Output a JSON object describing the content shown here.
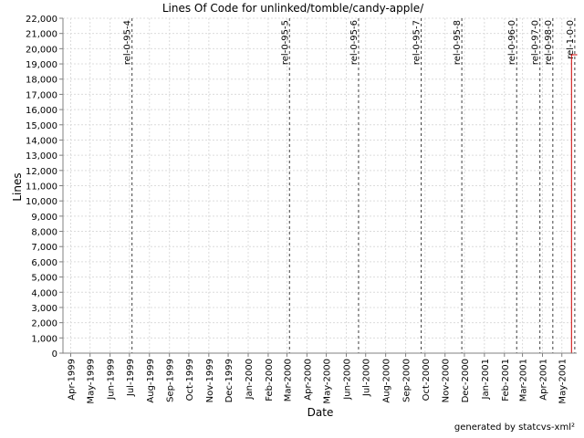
{
  "chart_data": {
    "type": "line",
    "title": "Lines Of Code for unlinked/tomble/candy-apple/",
    "xlabel": "Date",
    "ylabel": "Lines",
    "ylim": [
      0,
      22000
    ],
    "ytick_step": 1000,
    "x_range": [
      "1999-03-20",
      "2001-05-24"
    ],
    "grid": true,
    "x_ticks": [
      {
        "date": "1999-04-01",
        "label": "Apr-1999"
      },
      {
        "date": "1999-05-01",
        "label": "May-1999"
      },
      {
        "date": "1999-06-01",
        "label": "Jun-1999"
      },
      {
        "date": "1999-07-01",
        "label": "Jul-1999"
      },
      {
        "date": "1999-08-01",
        "label": "Aug-1999"
      },
      {
        "date": "1999-09-01",
        "label": "Sep-1999"
      },
      {
        "date": "1999-10-01",
        "label": "Oct-1999"
      },
      {
        "date": "1999-11-01",
        "label": "Nov-1999"
      },
      {
        "date": "1999-12-01",
        "label": "Dec-1999"
      },
      {
        "date": "2000-01-01",
        "label": "Jan-2000"
      },
      {
        "date": "2000-02-01",
        "label": "Feb-2000"
      },
      {
        "date": "2000-03-01",
        "label": "Mar-2000"
      },
      {
        "date": "2000-04-01",
        "label": "Apr-2000"
      },
      {
        "date": "2000-05-01",
        "label": "May-2000"
      },
      {
        "date": "2000-06-01",
        "label": "Jun-2000"
      },
      {
        "date": "2000-07-01",
        "label": "Jul-2000"
      },
      {
        "date": "2000-08-01",
        "label": "Aug-2000"
      },
      {
        "date": "2000-09-01",
        "label": "Sep-2000"
      },
      {
        "date": "2000-10-01",
        "label": "Oct-2000"
      },
      {
        "date": "2000-11-01",
        "label": "Nov-2000"
      },
      {
        "date": "2000-12-01",
        "label": "Dec-2000"
      },
      {
        "date": "2001-01-01",
        "label": "Jan-2001"
      },
      {
        "date": "2001-02-01",
        "label": "Feb-2001"
      },
      {
        "date": "2001-03-01",
        "label": "Mar-2001"
      },
      {
        "date": "2001-04-01",
        "label": "Apr-2001"
      },
      {
        "date": "2001-05-01",
        "label": "May-2001"
      }
    ],
    "markers": [
      {
        "date": "1999-07-05",
        "label": "rel-0-95-4"
      },
      {
        "date": "2000-03-05",
        "label": "rel-0-95-5"
      },
      {
        "date": "2000-06-20",
        "label": "rel-0-95-6"
      },
      {
        "date": "2000-09-25",
        "label": "rel-0-95-7"
      },
      {
        "date": "2000-11-27",
        "label": "rel-0-95-8"
      },
      {
        "date": "2001-02-20",
        "label": "rel-0-96-0"
      },
      {
        "date": "2001-03-28",
        "label": "rel-0-97-0"
      },
      {
        "date": "2001-04-17",
        "label": "rel-0-98-0"
      },
      {
        "date": "2001-05-21",
        "label": "rel-1-0-0"
      }
    ],
    "series": [
      {
        "color": "#cc0000",
        "points": [
          {
            "x": "1999-03-20",
            "y": 0
          },
          {
            "x": "2001-05-16",
            "y": 0
          },
          {
            "x": "2001-05-16",
            "y": 19600
          },
          {
            "x": "2001-05-24",
            "y": 19600
          }
        ]
      }
    ]
  },
  "footer": {
    "text": "generated by statcvs-xml²"
  }
}
